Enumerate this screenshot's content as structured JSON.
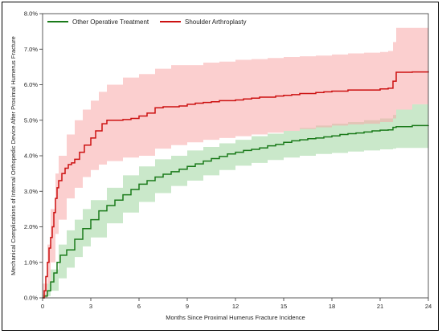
{
  "chart_data": {
    "type": "line",
    "title": "",
    "xlabel": "Months Since Proximal Humerus Fracture Incidence",
    "ylabel": "Mechanical Complications of Internal Orthopedic Device After Proximal Humerus Fracture",
    "xlim": [
      0,
      24
    ],
    "ylim": [
      0,
      8
    ],
    "x_ticks": [
      0,
      3,
      6,
      9,
      12,
      15,
      18,
      21,
      24
    ],
    "y_ticks": [
      0,
      1,
      2,
      3,
      4,
      5,
      6,
      7,
      8
    ],
    "x_tick_labels": [
      "0",
      "3",
      "6",
      "9",
      "12",
      "15",
      "18",
      "21",
      "24"
    ],
    "y_tick_labels": [
      "0.0%",
      "1.0%",
      "2.0%",
      "3.0%",
      "4.0%",
      "5.0%",
      "6.0%",
      "7.0%",
      "8.0%"
    ],
    "grid": false,
    "legend_position": "top-left",
    "series": [
      {
        "name": "Other Operative Treatment",
        "color": "#1a7a1a",
        "band_color": "#9fd59f",
        "points": [
          [
            0,
            0
          ],
          [
            0.1,
            0.05
          ],
          [
            0.3,
            0.2
          ],
          [
            0.5,
            0.45
          ],
          [
            0.7,
            0.7
          ],
          [
            0.9,
            1.0
          ],
          [
            1.1,
            1.2
          ],
          [
            1.5,
            1.35
          ],
          [
            2.0,
            1.65
          ],
          [
            2.5,
            1.95
          ],
          [
            3.0,
            2.2
          ],
          [
            3.5,
            2.45
          ],
          [
            4.0,
            2.6
          ],
          [
            4.5,
            2.75
          ],
          [
            5.0,
            2.9
          ],
          [
            5.5,
            3.05
          ],
          [
            6.0,
            3.2
          ],
          [
            6.5,
            3.3
          ],
          [
            7.0,
            3.4
          ],
          [
            7.5,
            3.48
          ],
          [
            8.0,
            3.55
          ],
          [
            8.5,
            3.62
          ],
          [
            9.0,
            3.7
          ],
          [
            9.5,
            3.77
          ],
          [
            10.0,
            3.85
          ],
          [
            10.5,
            3.92
          ],
          [
            11.0,
            3.98
          ],
          [
            11.5,
            4.05
          ],
          [
            12.0,
            4.1
          ],
          [
            12.5,
            4.15
          ],
          [
            13.0,
            4.18
          ],
          [
            13.5,
            4.22
          ],
          [
            14.0,
            4.28
          ],
          [
            14.5,
            4.32
          ],
          [
            15.0,
            4.38
          ],
          [
            15.5,
            4.42
          ],
          [
            16.0,
            4.45
          ],
          [
            16.5,
            4.48
          ],
          [
            17.0,
            4.5
          ],
          [
            17.5,
            4.53
          ],
          [
            18.0,
            4.56
          ],
          [
            18.5,
            4.6
          ],
          [
            19.0,
            4.62
          ],
          [
            19.5,
            4.64
          ],
          [
            20.0,
            4.67
          ],
          [
            20.5,
            4.7
          ],
          [
            21.0,
            4.72
          ],
          [
            21.5,
            4.73
          ],
          [
            21.8,
            4.8
          ],
          [
            22.0,
            4.82
          ],
          [
            23.0,
            4.85
          ],
          [
            24.0,
            4.86
          ]
        ],
        "lower": [
          [
            0,
            0
          ],
          [
            0.3,
            0.05
          ],
          [
            0.5,
            0.2
          ],
          [
            1.0,
            0.55
          ],
          [
            1.5,
            0.85
          ],
          [
            2.0,
            1.15
          ],
          [
            2.5,
            1.45
          ],
          [
            3.0,
            1.7
          ],
          [
            4.0,
            2.1
          ],
          [
            5.0,
            2.4
          ],
          [
            6.0,
            2.7
          ],
          [
            7.0,
            2.95
          ],
          [
            8.0,
            3.15
          ],
          [
            9.0,
            3.3
          ],
          [
            10.0,
            3.45
          ],
          [
            11.0,
            3.6
          ],
          [
            12.0,
            3.72
          ],
          [
            13.0,
            3.8
          ],
          [
            14.0,
            3.88
          ],
          [
            15.0,
            3.95
          ],
          [
            16.0,
            4.0
          ],
          [
            17.0,
            4.05
          ],
          [
            18.0,
            4.08
          ],
          [
            19.0,
            4.12
          ],
          [
            20.0,
            4.15
          ],
          [
            21.0,
            4.18
          ],
          [
            21.8,
            4.2
          ],
          [
            22.0,
            4.22
          ],
          [
            24.0,
            4.25
          ]
        ],
        "upper": [
          [
            0,
            0.1
          ],
          [
            0.3,
            0.4
          ],
          [
            0.5,
            0.8
          ],
          [
            1.0,
            1.5
          ],
          [
            1.5,
            1.9
          ],
          [
            2.0,
            2.2
          ],
          [
            2.5,
            2.5
          ],
          [
            3.0,
            2.75
          ],
          [
            4.0,
            3.1
          ],
          [
            5.0,
            3.45
          ],
          [
            6.0,
            3.7
          ],
          [
            7.0,
            3.9
          ],
          [
            8.0,
            4.0
          ],
          [
            9.0,
            4.15
          ],
          [
            10.0,
            4.25
          ],
          [
            11.0,
            4.35
          ],
          [
            12.0,
            4.45
          ],
          [
            13.0,
            4.55
          ],
          [
            14.0,
            4.62
          ],
          [
            15.0,
            4.7
          ],
          [
            16.0,
            4.78
          ],
          [
            17.0,
            4.85
          ],
          [
            18.0,
            4.9
          ],
          [
            19.0,
            4.95
          ],
          [
            20.0,
            5.0
          ],
          [
            21.0,
            5.05
          ],
          [
            21.8,
            5.15
          ],
          [
            22.0,
            5.3
          ],
          [
            23.0,
            5.45
          ],
          [
            24.0,
            5.5
          ]
        ]
      },
      {
        "name": "Shoulder Arthroplasty",
        "color": "#cc1111",
        "band_color": "#f7a8a8",
        "points": [
          [
            0,
            0
          ],
          [
            0.1,
            0.2
          ],
          [
            0.2,
            0.6
          ],
          [
            0.3,
            1.0
          ],
          [
            0.4,
            1.4
          ],
          [
            0.5,
            1.7
          ],
          [
            0.6,
            2.0
          ],
          [
            0.7,
            2.4
          ],
          [
            0.8,
            2.8
          ],
          [
            0.9,
            3.1
          ],
          [
            1.0,
            3.3
          ],
          [
            1.2,
            3.5
          ],
          [
            1.4,
            3.65
          ],
          [
            1.6,
            3.75
          ],
          [
            1.8,
            3.8
          ],
          [
            2.0,
            3.9
          ],
          [
            2.3,
            4.1
          ],
          [
            2.6,
            4.3
          ],
          [
            3.0,
            4.5
          ],
          [
            3.3,
            4.7
          ],
          [
            3.7,
            4.9
          ],
          [
            4.0,
            5.0
          ],
          [
            4.5,
            5.0
          ],
          [
            5.0,
            5.02
          ],
          [
            5.5,
            5.05
          ],
          [
            6.0,
            5.12
          ],
          [
            6.5,
            5.2
          ],
          [
            7.0,
            5.35
          ],
          [
            7.5,
            5.38
          ],
          [
            8.0,
            5.38
          ],
          [
            8.5,
            5.4
          ],
          [
            9.0,
            5.45
          ],
          [
            9.5,
            5.48
          ],
          [
            10.0,
            5.5
          ],
          [
            10.5,
            5.52
          ],
          [
            11.0,
            5.55
          ],
          [
            11.5,
            5.55
          ],
          [
            12.0,
            5.57
          ],
          [
            12.5,
            5.6
          ],
          [
            13.0,
            5.62
          ],
          [
            13.5,
            5.65
          ],
          [
            14.0,
            5.65
          ],
          [
            14.5,
            5.68
          ],
          [
            15.0,
            5.7
          ],
          [
            15.5,
            5.72
          ],
          [
            16.0,
            5.75
          ],
          [
            16.5,
            5.75
          ],
          [
            17.0,
            5.78
          ],
          [
            17.5,
            5.8
          ],
          [
            18.0,
            5.82
          ],
          [
            19.0,
            5.85
          ],
          [
            20.0,
            5.85
          ],
          [
            21.0,
            5.88
          ],
          [
            21.5,
            5.9
          ],
          [
            21.8,
            6.1
          ],
          [
            22.0,
            6.35
          ],
          [
            23.0,
            6.36
          ],
          [
            24.0,
            6.38
          ]
        ],
        "lower": [
          [
            0,
            0
          ],
          [
            0.3,
            0.4
          ],
          [
            0.5,
            1.0
          ],
          [
            0.8,
            1.8
          ],
          [
            1.0,
            2.2
          ],
          [
            1.5,
            2.8
          ],
          [
            2.0,
            3.1
          ],
          [
            2.5,
            3.4
          ],
          [
            3.0,
            3.6
          ],
          [
            3.5,
            3.75
          ],
          [
            4.0,
            3.85
          ],
          [
            5.0,
            3.95
          ],
          [
            6.0,
            4.0
          ],
          [
            7.0,
            4.2
          ],
          [
            8.0,
            4.3
          ],
          [
            9.0,
            4.38
          ],
          [
            10.0,
            4.45
          ],
          [
            11.0,
            4.5
          ],
          [
            12.0,
            4.55
          ],
          [
            13.0,
            4.6
          ],
          [
            14.0,
            4.65
          ],
          [
            15.0,
            4.7
          ],
          [
            16.0,
            4.75
          ],
          [
            17.0,
            4.8
          ],
          [
            18.0,
            4.85
          ],
          [
            19.0,
            4.88
          ],
          [
            20.0,
            4.9
          ],
          [
            21.0,
            4.95
          ],
          [
            21.8,
            5.05
          ],
          [
            22.0,
            5.3
          ],
          [
            23.0,
            5.45
          ],
          [
            24.0,
            5.55
          ]
        ],
        "upper": [
          [
            0,
            0.4
          ],
          [
            0.3,
            1.5
          ],
          [
            0.5,
            2.5
          ],
          [
            0.8,
            3.5
          ],
          [
            1.0,
            4.0
          ],
          [
            1.5,
            4.6
          ],
          [
            2.0,
            5.0
          ],
          [
            2.5,
            5.3
          ],
          [
            3.0,
            5.55
          ],
          [
            3.5,
            5.8
          ],
          [
            4.0,
            6.0
          ],
          [
            5.0,
            6.2
          ],
          [
            6.0,
            6.3
          ],
          [
            7.0,
            6.45
          ],
          [
            8.0,
            6.55
          ],
          [
            9.0,
            6.55
          ],
          [
            10.0,
            6.62
          ],
          [
            11.0,
            6.65
          ],
          [
            12.0,
            6.7
          ],
          [
            13.0,
            6.72
          ],
          [
            14.0,
            6.75
          ],
          [
            15.0,
            6.78
          ],
          [
            16.0,
            6.8
          ],
          [
            17.0,
            6.82
          ],
          [
            18.0,
            6.85
          ],
          [
            19.0,
            6.88
          ],
          [
            20.0,
            6.9
          ],
          [
            21.0,
            6.92
          ],
          [
            21.5,
            6.95
          ],
          [
            21.8,
            7.2
          ],
          [
            22.0,
            7.6
          ],
          [
            24.0,
            7.6
          ]
        ]
      }
    ]
  }
}
